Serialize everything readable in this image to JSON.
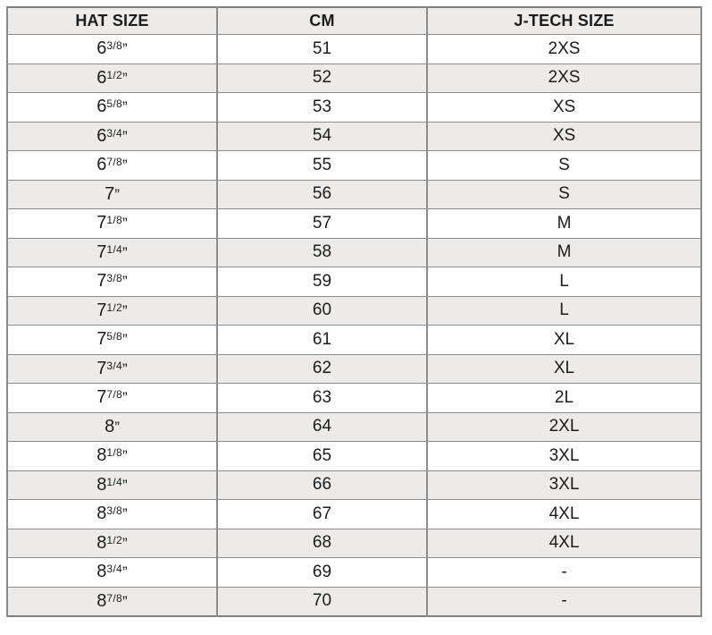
{
  "table": {
    "headers": [
      "HAT SIZE",
      "CM",
      "J-TECH SIZE"
    ],
    "inch_mark": "”",
    "rows": [
      {
        "hat_whole": "6",
        "hat_frac": "3/8",
        "cm": "51",
        "jtech": "2XS"
      },
      {
        "hat_whole": "6",
        "hat_frac": "1/2",
        "cm": "52",
        "jtech": "2XS"
      },
      {
        "hat_whole": "6",
        "hat_frac": "5/8",
        "cm": "53",
        "jtech": "XS"
      },
      {
        "hat_whole": "6",
        "hat_frac": "3/4",
        "cm": "54",
        "jtech": "XS"
      },
      {
        "hat_whole": "6",
        "hat_frac": "7/8",
        "cm": "55",
        "jtech": "S"
      },
      {
        "hat_whole": "7",
        "hat_frac": "",
        "cm": "56",
        "jtech": "S"
      },
      {
        "hat_whole": "7",
        "hat_frac": "1/8",
        "cm": "57",
        "jtech": "M"
      },
      {
        "hat_whole": "7",
        "hat_frac": "1/4",
        "cm": "58",
        "jtech": "M"
      },
      {
        "hat_whole": "7",
        "hat_frac": "3/8",
        "cm": "59",
        "jtech": "L"
      },
      {
        "hat_whole": "7",
        "hat_frac": "1/2",
        "cm": "60",
        "jtech": "L"
      },
      {
        "hat_whole": "7",
        "hat_frac": "5/8",
        "cm": "61",
        "jtech": "XL"
      },
      {
        "hat_whole": "7",
        "hat_frac": "3/4",
        "cm": "62",
        "jtech": "XL"
      },
      {
        "hat_whole": "7",
        "hat_frac": "7/8",
        "cm": "63",
        "jtech": "2L"
      },
      {
        "hat_whole": "8",
        "hat_frac": "",
        "cm": "64",
        "jtech": "2XL"
      },
      {
        "hat_whole": "8",
        "hat_frac": "1/8",
        "cm": "65",
        "jtech": "3XL"
      },
      {
        "hat_whole": "8",
        "hat_frac": "1/4",
        "cm": "66",
        "jtech": "3XL"
      },
      {
        "hat_whole": "8",
        "hat_frac": "3/8",
        "cm": "67",
        "jtech": "4XL"
      },
      {
        "hat_whole": "8",
        "hat_frac": "1/2",
        "cm": "68",
        "jtech": "4XL"
      },
      {
        "hat_whole": "8",
        "hat_frac": "3/4",
        "cm": "69",
        "jtech": "-"
      },
      {
        "hat_whole": "8",
        "hat_frac": "7/8",
        "cm": "70",
        "jtech": "-"
      }
    ],
    "colors": {
      "header_bg": "#ECEBE9",
      "row_alt_bg": "#ECEBE9",
      "border": "#8C8C8C",
      "text": "#1C1C1C"
    }
  },
  "chart_data": {
    "type": "table",
    "title": "Hat size conversion chart",
    "columns": [
      "HAT SIZE",
      "CM",
      "J-TECH SIZE"
    ],
    "rows": [
      [
        "6 3/8\"",
        51,
        "2XS"
      ],
      [
        "6 1/2\"",
        52,
        "2XS"
      ],
      [
        "6 5/8\"",
        53,
        "XS"
      ],
      [
        "6 3/4\"",
        54,
        "XS"
      ],
      [
        "6 7/8\"",
        55,
        "S"
      ],
      [
        "7\"",
        56,
        "S"
      ],
      [
        "7 1/8\"",
        57,
        "M"
      ],
      [
        "7 1/4\"",
        58,
        "M"
      ],
      [
        "7 3/8\"",
        59,
        "L"
      ],
      [
        "7 1/2\"",
        60,
        "L"
      ],
      [
        "7 5/8\"",
        61,
        "XL"
      ],
      [
        "7 3/4\"",
        62,
        "XL"
      ],
      [
        "7 7/8\"",
        63,
        "2L"
      ],
      [
        "8\"",
        64,
        "2XL"
      ],
      [
        "8 1/8\"",
        65,
        "3XL"
      ],
      [
        "8 1/4\"",
        66,
        "3XL"
      ],
      [
        "8 3/8\"",
        67,
        "4XL"
      ],
      [
        "8 1/2\"",
        68,
        "4XL"
      ],
      [
        "8 3/4\"",
        69,
        "-"
      ],
      [
        "8 7/8\"",
        70,
        "-"
      ]
    ],
    "layout": {
      "striped": true,
      "stripe_color": "#ECEBE9",
      "grid": true
    }
  }
}
